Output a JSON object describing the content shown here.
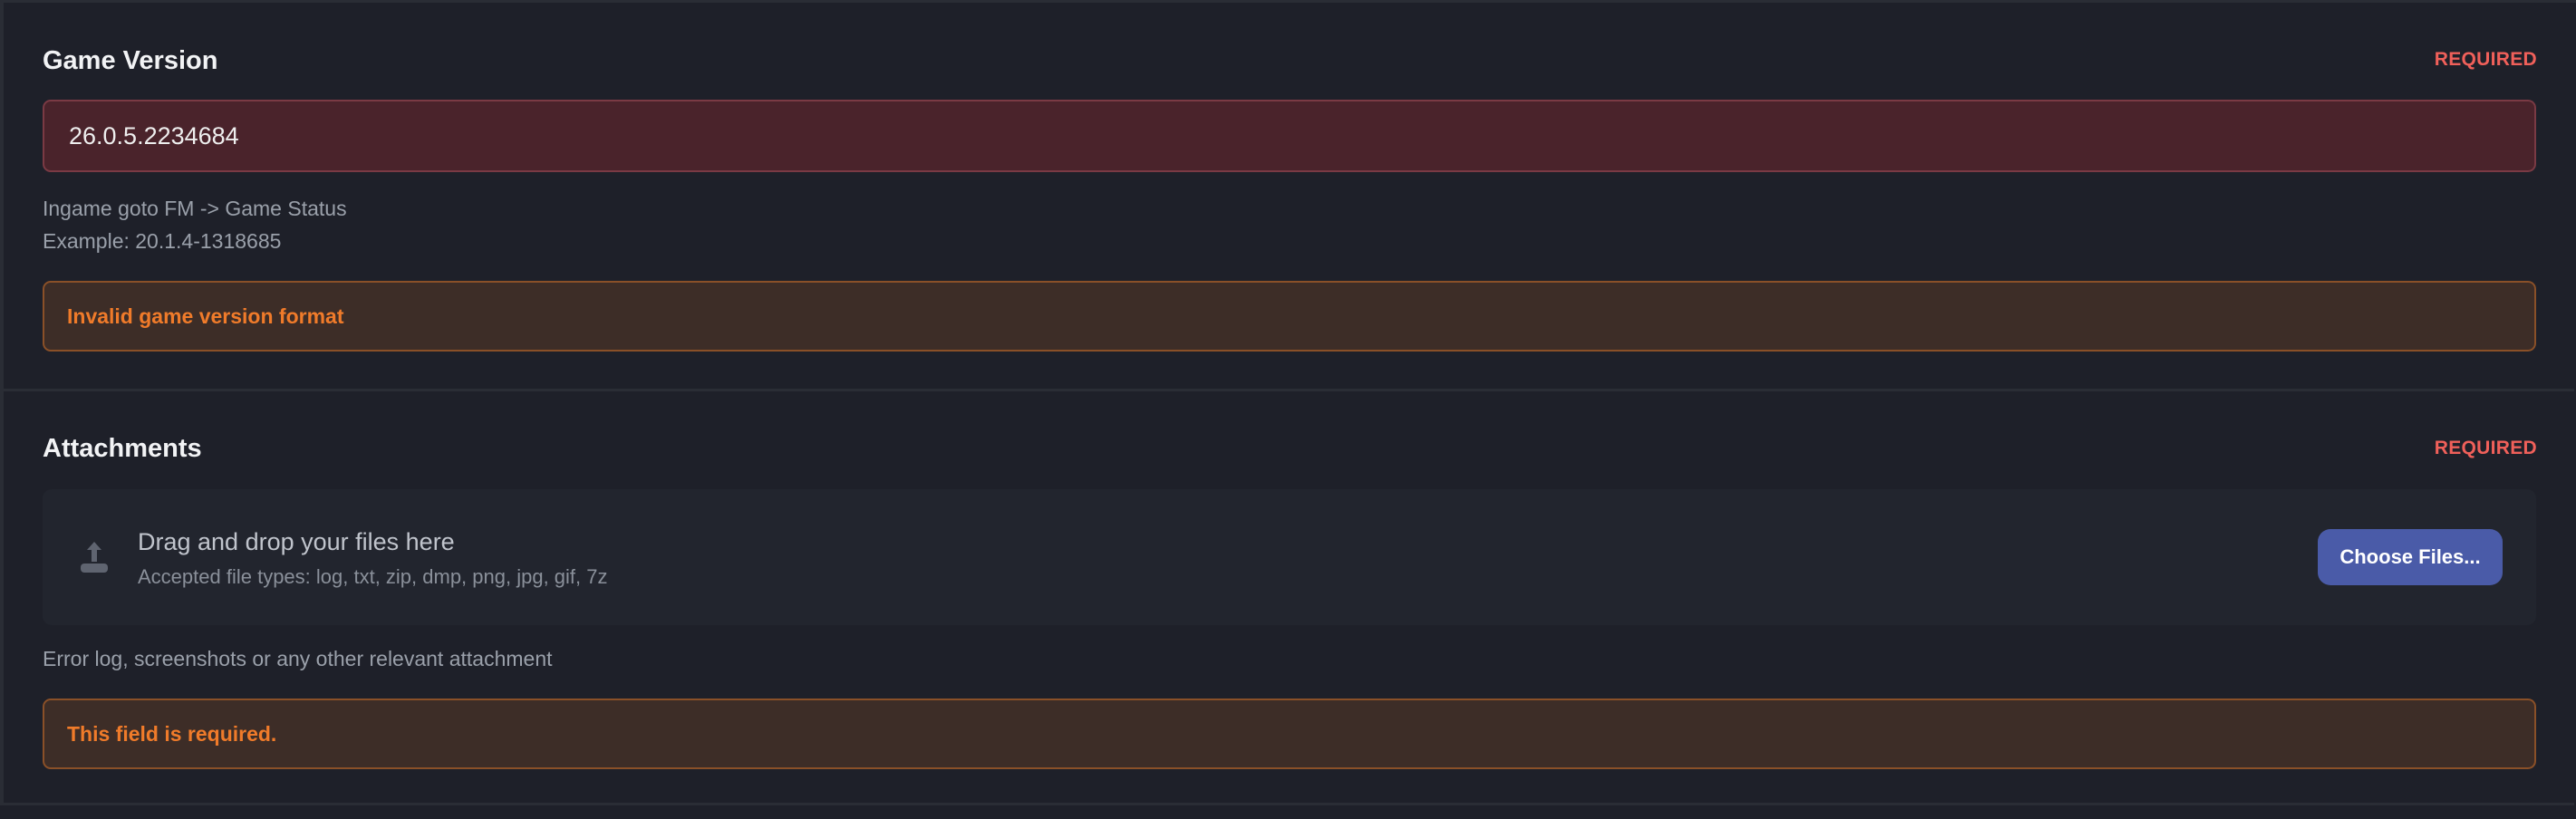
{
  "game_version": {
    "title": "Game Version",
    "required_label": "REQUIRED",
    "value": "26.0.5.2234684",
    "help_lines": [
      "Ingame goto FM -> Game Status",
      "Example: 20.1.4-1318685"
    ],
    "error": "Invalid game version format"
  },
  "attachments": {
    "title": "Attachments",
    "required_label": "REQUIRED",
    "dropzone_title": "Drag and drop your files here",
    "dropzone_subtitle": "Accepted file types: log, txt, zip, dmp, png, jpg, gif, 7z",
    "icon": "upload-icon",
    "choose_button": "Choose Files...",
    "help": "Error log, screenshots or any other relevant attachment",
    "error": "This field is required."
  },
  "colors": {
    "background": "#1e2029",
    "required": "#f0605a",
    "error_text": "#f07b2a",
    "invalid_input_bg": "#4a232b",
    "button": "#4a5ba8"
  }
}
